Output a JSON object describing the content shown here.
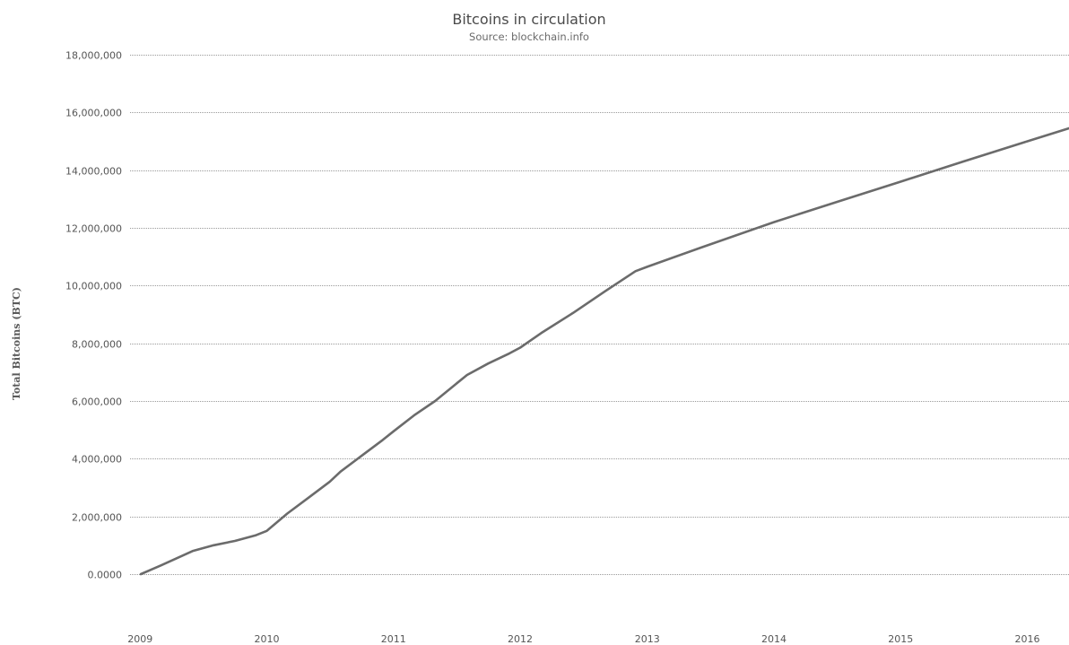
{
  "chart_data": {
    "type": "line",
    "title": "Bitcoins in circulation",
    "subtitle": "Source: blockchain.info",
    "xlabel": "",
    "ylabel": "Total Bitcoins (BTC)",
    "xlim": [
      "2009-01-03",
      "2016-04-30"
    ],
    "ylim": [
      0,
      18000000
    ],
    "x_ticks": [
      "2009",
      "2010",
      "2011",
      "2012",
      "2013",
      "2014",
      "2015",
      "2016"
    ],
    "y_ticks": [
      "0.0000",
      "2,000,000",
      "4,000,000",
      "6,000,000",
      "8,000,000",
      "10,000,000",
      "12,000,000",
      "14,000,000",
      "16,000,000",
      "18,000,000"
    ],
    "grid": true,
    "legend": "none",
    "line_color": "#6b6b6b",
    "series": [
      {
        "x": [
          "2009-01-03",
          "2009-03-01",
          "2009-06-01",
          "2009-08-01",
          "2009-10-01",
          "2009-12-01",
          "2010-01-01",
          "2010-03-01",
          "2010-05-01",
          "2010-07-01",
          "2010-08-01",
          "2010-10-01",
          "2010-12-01",
          "2011-01-01",
          "2011-03-01",
          "2011-05-01",
          "2011-07-01",
          "2011-08-01",
          "2011-10-01",
          "2011-12-01",
          "2012-01-01",
          "2012-03-01",
          "2012-06-01",
          "2012-09-01",
          "2012-11-28",
          "2013-01-01",
          "2013-06-01",
          "2014-01-01",
          "2014-07-01",
          "2015-01-01",
          "2015-07-01",
          "2016-01-01",
          "2016-04-30"
        ],
        "values": [
          0,
          300000,
          800000,
          1000000,
          1150000,
          1350000,
          1500000,
          2100000,
          2650000,
          3200000,
          3550000,
          4100000,
          4650000,
          4950000,
          5500000,
          6000000,
          6600000,
          6900000,
          7300000,
          7650000,
          7850000,
          8350000,
          9050000,
          9800000,
          10500000,
          10650000,
          11300000,
          12200000,
          12900000,
          13600000,
          14300000,
          15000000,
          15450000
        ]
      }
    ]
  }
}
